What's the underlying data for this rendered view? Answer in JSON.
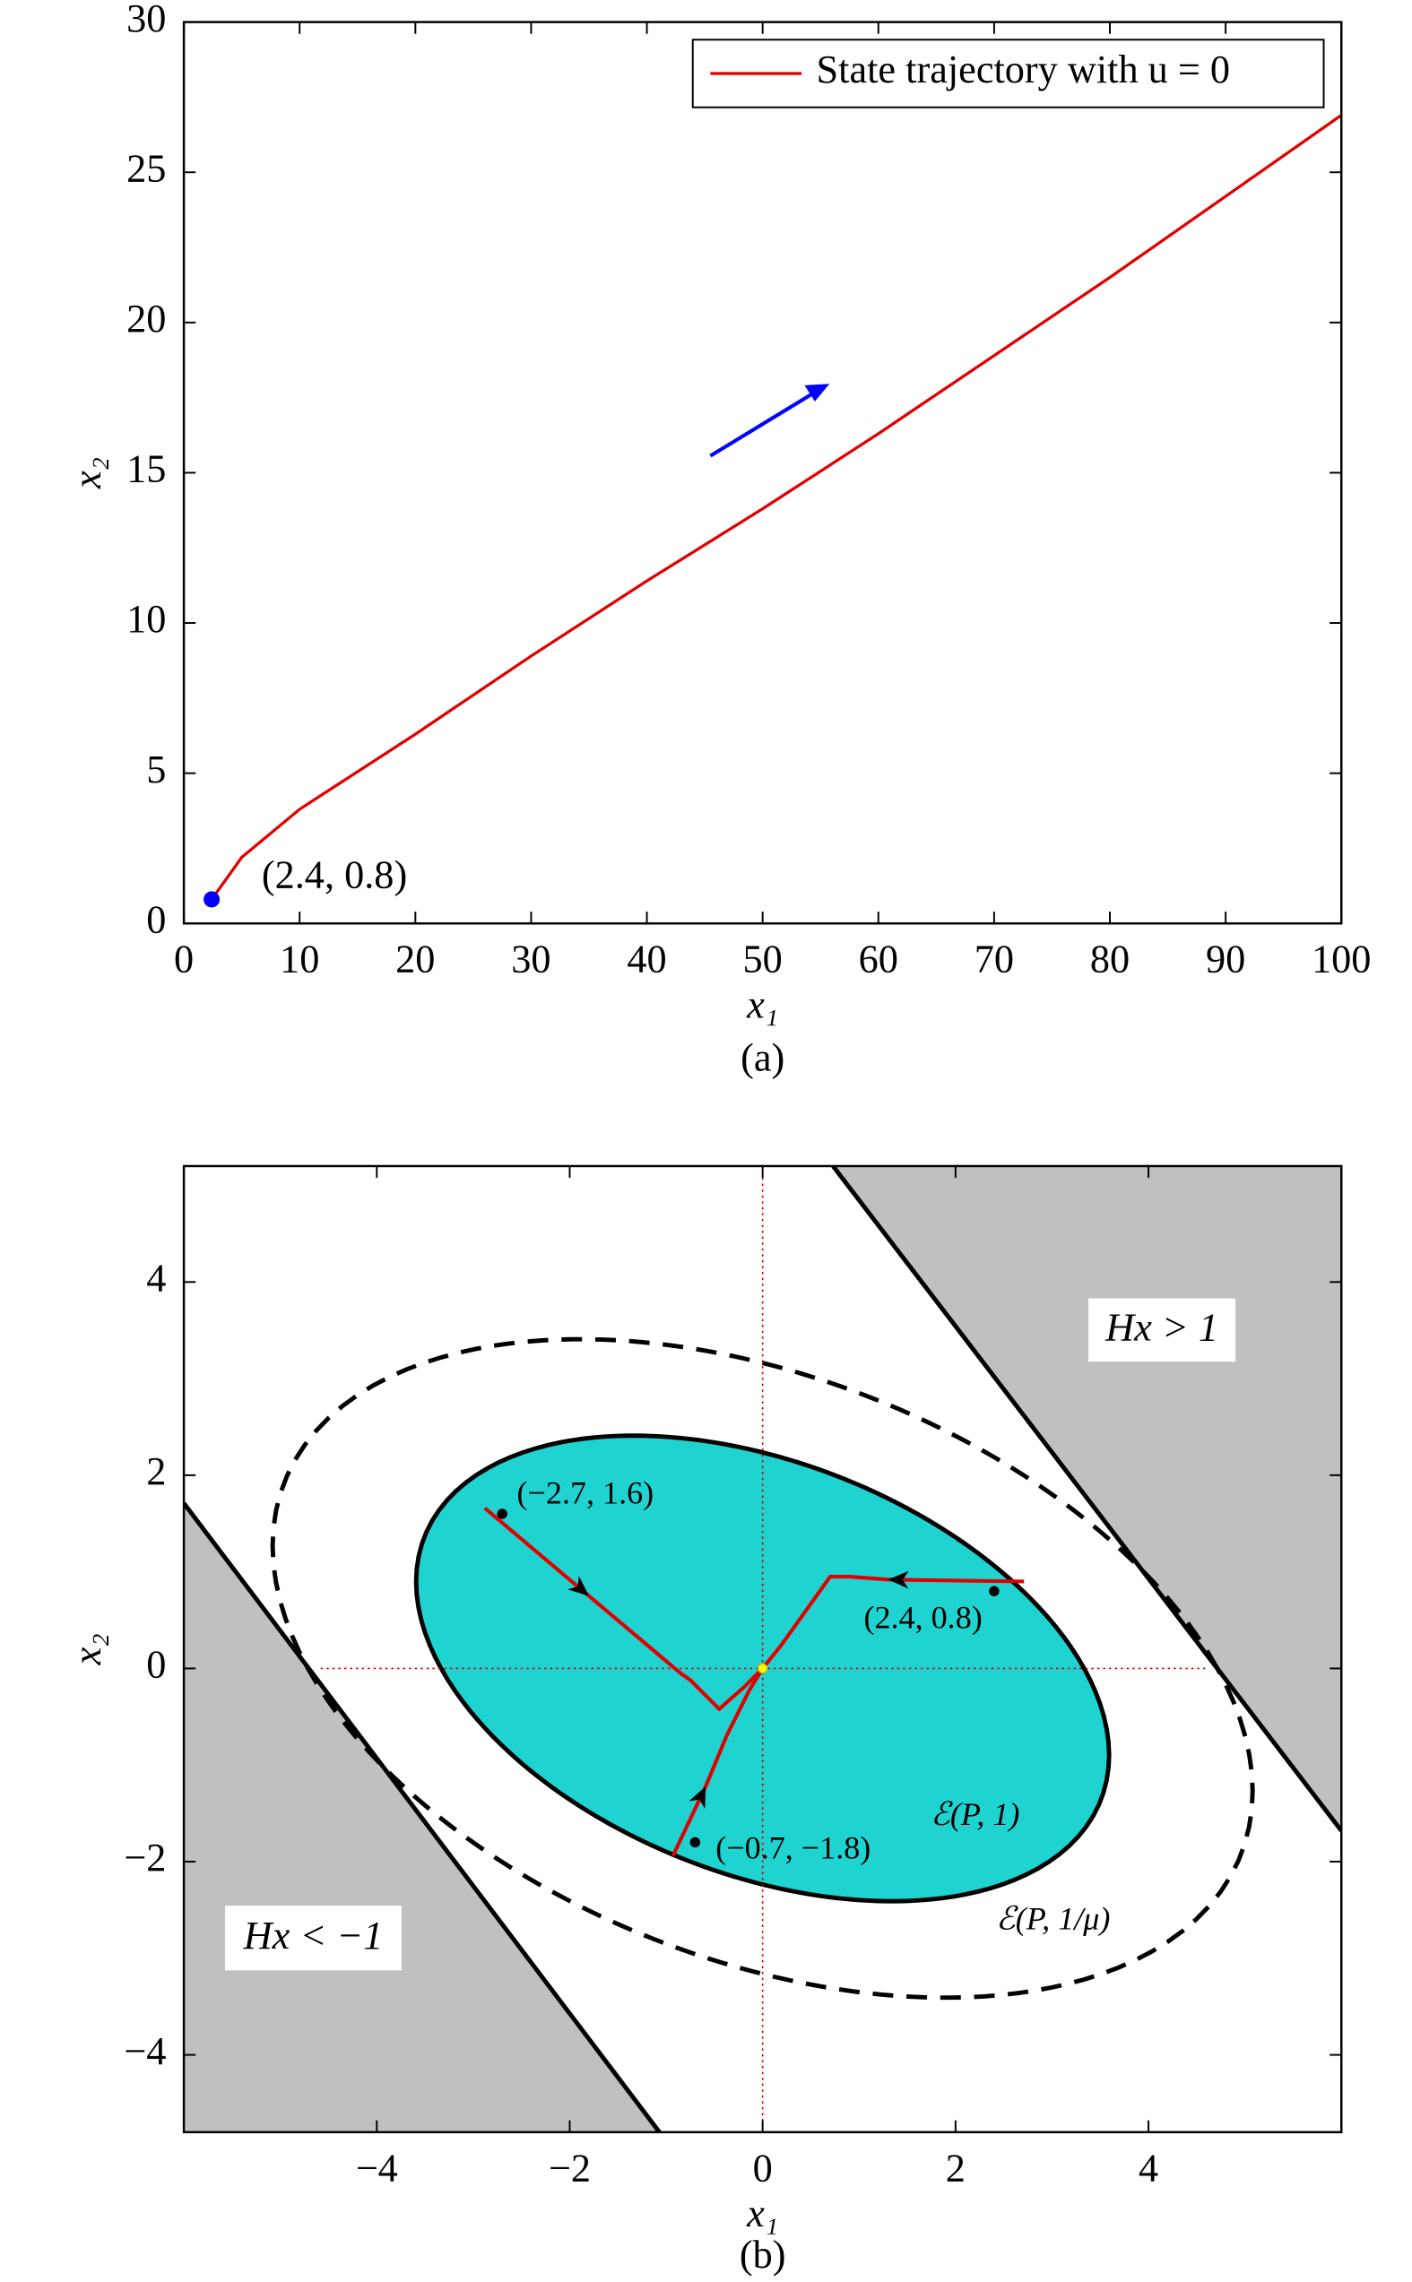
{
  "chart_data": [
    {
      "type": "line",
      "xlabel": "x₁",
      "ylabel": "x₂",
      "caption": "(a)",
      "xlim": [
        0,
        100
      ],
      "ylim": [
        0,
        30
      ],
      "xticks": [
        0,
        10,
        20,
        30,
        40,
        50,
        60,
        70,
        80,
        90,
        100
      ],
      "yticks": [
        0,
        5,
        10,
        15,
        20,
        25,
        30
      ],
      "legend": "upper right",
      "series": [
        {
          "name": "State trajectory with u = 0",
          "color": "#e00000",
          "x": [
            2.4,
            5,
            10,
            20,
            30,
            40,
            50,
            60,
            70,
            80,
            90,
            100
          ],
          "values": [
            0.8,
            2.2,
            3.8,
            6.3,
            8.9,
            11.4,
            13.8,
            16.3,
            18.9,
            21.5,
            24.2,
            26.9
          ]
        }
      ],
      "start_point": {
        "x": 2.4,
        "y": 0.8,
        "label": "(2.4, 0.8)",
        "color": "#0000ff"
      }
    },
    {
      "type": "phase",
      "xlabel": "x₁",
      "ylabel": "x₂",
      "caption": "(b)",
      "xlim": [
        -6,
        6
      ],
      "ylim": [
        -4.8,
        5.2
      ],
      "xticks": [
        {
          "value": -4,
          "label": "−4"
        },
        {
          "value": -2,
          "label": "−2"
        },
        0,
        2,
        4
      ],
      "yticks": [
        {
          "value": -4,
          "label": "−4"
        },
        {
          "value": -2,
          "label": "−2"
        },
        0,
        2,
        4
      ],
      "P": [
        [
          0.09,
          0.05
        ],
        [
          0.05,
          0.2
        ]
      ],
      "ellipses": [
        {
          "level": 1,
          "label": "ℰ(P, 1)",
          "fill": "#1fd4d0",
          "dashed": false
        },
        {
          "level": 2,
          "label": "ℰ(P, 1/μ)",
          "fill": "none",
          "dashed": true
        }
      ],
      "region_color": "#c0c0c0",
      "regions": [
        {
          "label": "Hx > 1",
          "x": [
            0.73,
            6
          ],
          "y": [
            5.2,
            -1.68
          ]
        },
        {
          "label": "Hx < −1",
          "x": [
            -6,
            -1.07
          ],
          "y": [
            1.71,
            -4.8
          ]
        }
      ],
      "color": "#e00000",
      "trajectories": [
        {
          "x": [
            -2.88,
            -1.8,
            -0.85,
            -0.75,
            -0.45,
            -0.2,
            0
          ],
          "y": [
            1.66,
            0.75,
            -0.05,
            -0.12,
            -0.42,
            -0.2,
            0
          ]
        },
        {
          "x": [
            2.71,
            1.3,
            0.9,
            0.7,
            0.45,
            0.2,
            0
          ],
          "y": [
            0.9,
            0.92,
            0.95,
            0.95,
            0.6,
            0.25,
            0
          ]
        },
        {
          "x": [
            -0.93,
            -0.59,
            -0.37,
            -0.14,
            0
          ],
          "y": [
            -1.94,
            -1.22,
            -0.69,
            -0.23,
            0
          ]
        }
      ],
      "initial_points": [
        {
          "x": -2.7,
          "y": 1.6,
          "label": "(−2.7, 1.6)"
        },
        {
          "x": 2.4,
          "y": 0.8,
          "label": "(2.4, 0.8)"
        },
        {
          "x": -0.7,
          "y": -1.8,
          "label": "(−0.7, −1.8)"
        }
      ]
    }
  ]
}
